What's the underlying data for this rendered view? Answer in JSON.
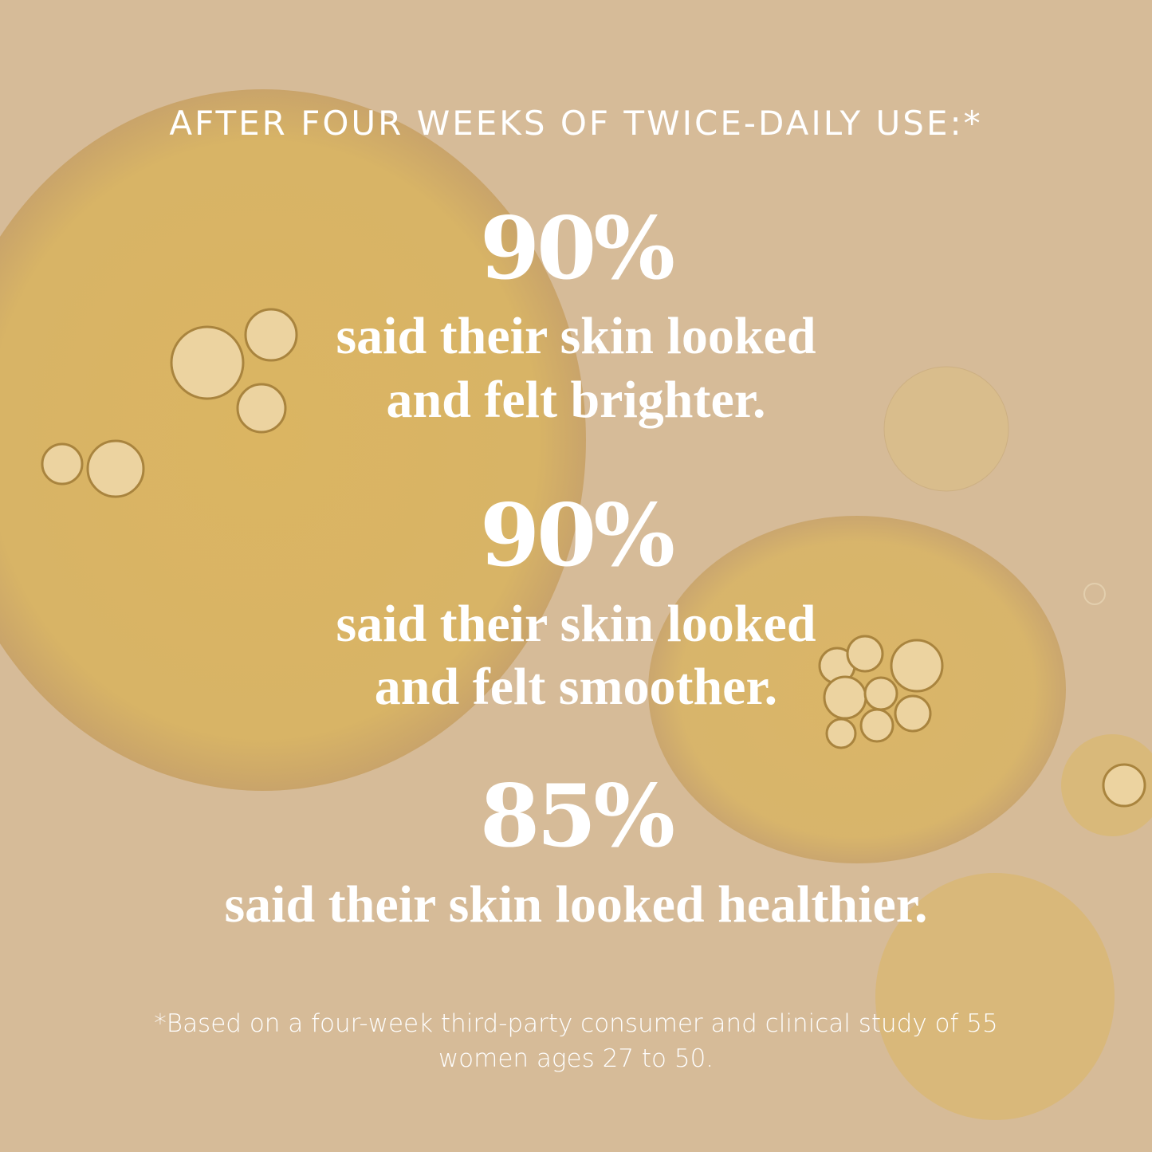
{
  "header": "AFTER FOUR WEEKS OF TWICE-DAILY USE:*",
  "stats": [
    {
      "percent": "90%",
      "lines": [
        "said their skin looked",
        "and felt brighter."
      ]
    },
    {
      "percent": "90%",
      "lines": [
        "said their skin looked",
        "and felt smoother."
      ]
    },
    {
      "percent": "85%",
      "lines": [
        "said their skin looked healthier."
      ]
    }
  ],
  "footnote": [
    "*Based on a four-week third-party consumer and clinical study of 55",
    "women ages 27 to 50."
  ],
  "colors": {
    "background": "#d6bb98",
    "oil": "#d8b35f",
    "text": "#ffffff"
  }
}
